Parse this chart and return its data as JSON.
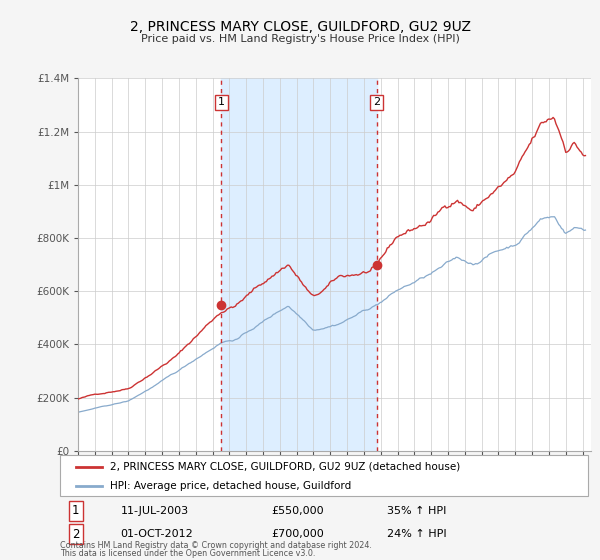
{
  "title": "2, PRINCESS MARY CLOSE, GUILDFORD, GU2 9UZ",
  "subtitle": "Price paid vs. HM Land Registry's House Price Index (HPI)",
  "legend_line1": "2, PRINCESS MARY CLOSE, GUILDFORD, GU2 9UZ (detached house)",
  "legend_line2": "HPI: Average price, detached house, Guildford",
  "footnote1": "Contains HM Land Registry data © Crown copyright and database right 2024.",
  "footnote2": "This data is licensed under the Open Government Licence v3.0.",
  "sale1_date": "11-JUL-2003",
  "sale1_price": "£550,000",
  "sale1_hpi": "35% ↑ HPI",
  "sale2_date": "01-OCT-2012",
  "sale2_price": "£700,000",
  "sale2_hpi": "24% ↑ HPI",
  "sale1_x": 2003.53,
  "sale1_y": 550000,
  "sale2_x": 2012.75,
  "sale2_y": 700000,
  "vline1_x": 2003.53,
  "vline2_x": 2012.75,
  "shade_start": 2003.53,
  "shade_end": 2012.75,
  "xmin": 1995.0,
  "xmax": 2025.5,
  "ymin": 0,
  "ymax": 1400000,
  "yticks": [
    0,
    200000,
    400000,
    600000,
    800000,
    1000000,
    1200000,
    1400000
  ],
  "ytick_labels": [
    "£0",
    "£200K",
    "£400K",
    "£600K",
    "£800K",
    "£1M",
    "£1.2M",
    "£1.4M"
  ],
  "red_color": "#cc3333",
  "blue_color": "#88aacc",
  "shade_color": "#ddeeff",
  "grid_color": "#cccccc",
  "bg_color": "#f5f5f5",
  "plot_bg_color": "#ffffff",
  "anno_box_color": "#cc3333"
}
